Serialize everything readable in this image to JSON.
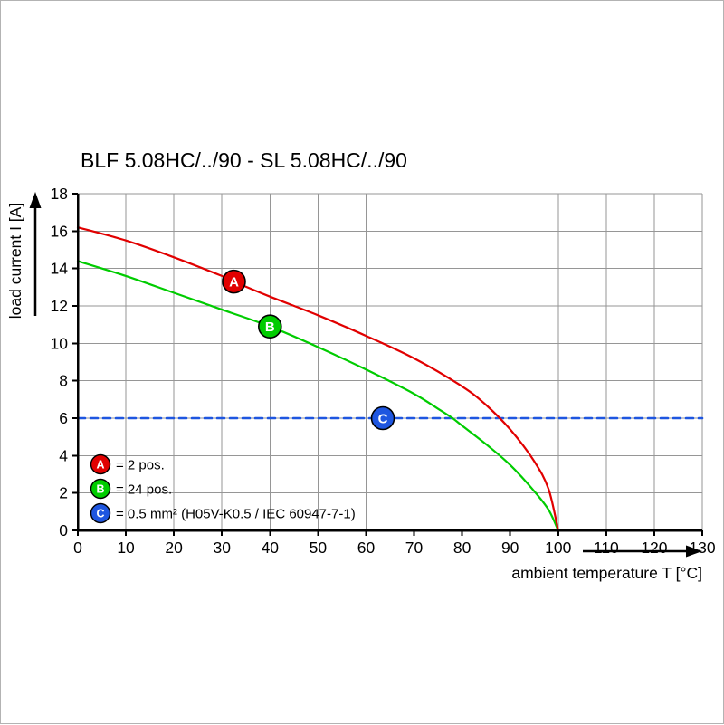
{
  "frame": {
    "background": "#ffffff",
    "border_color": "#b3b3b3"
  },
  "chart_data": {
    "type": "line",
    "title": "BLF 5.08HC/../90 - SL 5.08HC/../90",
    "xlabel": "ambient temperature T [°C]",
    "ylabel": "load current I [A]",
    "xlim": [
      0,
      130
    ],
    "ylim": [
      0,
      18
    ],
    "xticks": [
      0,
      10,
      20,
      30,
      40,
      50,
      60,
      70,
      80,
      90,
      100,
      110,
      120,
      130
    ],
    "yticks": [
      0,
      2,
      4,
      6,
      8,
      10,
      12,
      14,
      16,
      18
    ],
    "grid": true,
    "grid_color": "#969696",
    "axis_color": "#000000",
    "legend_position": "lower-left",
    "series": [
      {
        "id": "A",
        "legend_label": "= 2 pos.",
        "color": "#e10000",
        "style": "solid",
        "marker_point": {
          "x": 32.5,
          "y": 13.3
        },
        "points": [
          [
            0,
            16.2
          ],
          [
            10,
            15.5
          ],
          [
            20,
            14.6
          ],
          [
            30,
            13.6
          ],
          [
            32.5,
            13.3
          ],
          [
            40,
            12.5
          ],
          [
            50,
            11.5
          ],
          [
            60,
            10.4
          ],
          [
            70,
            9.2
          ],
          [
            80,
            7.7
          ],
          [
            85,
            6.7
          ],
          [
            90,
            5.4
          ],
          [
            95,
            3.7
          ],
          [
            98,
            2.2
          ],
          [
            100,
            0
          ]
        ]
      },
      {
        "id": "B",
        "legend_label": "= 24 pos.",
        "color": "#00cc00",
        "style": "solid",
        "marker_point": {
          "x": 40,
          "y": 10.9
        },
        "points": [
          [
            0,
            14.4
          ],
          [
            10,
            13.6
          ],
          [
            20,
            12.7
          ],
          [
            30,
            11.8
          ],
          [
            40,
            10.9
          ],
          [
            50,
            9.8
          ],
          [
            60,
            8.6
          ],
          [
            70,
            7.3
          ],
          [
            75,
            6.5
          ],
          [
            78,
            6.0
          ],
          [
            80,
            5.6
          ],
          [
            85,
            4.6
          ],
          [
            90,
            3.5
          ],
          [
            95,
            2.1
          ],
          [
            98,
            1.1
          ],
          [
            100,
            0
          ]
        ]
      },
      {
        "id": "C",
        "legend_label": "= 0.5 mm² (H05V-K0.5 / IEC 60947-7-1)",
        "color": "#1e56e0",
        "style": "dashed",
        "marker_point": {
          "x": 63.5,
          "y": 6
        },
        "points": [
          [
            0,
            6
          ],
          [
            130,
            6
          ]
        ]
      }
    ]
  }
}
